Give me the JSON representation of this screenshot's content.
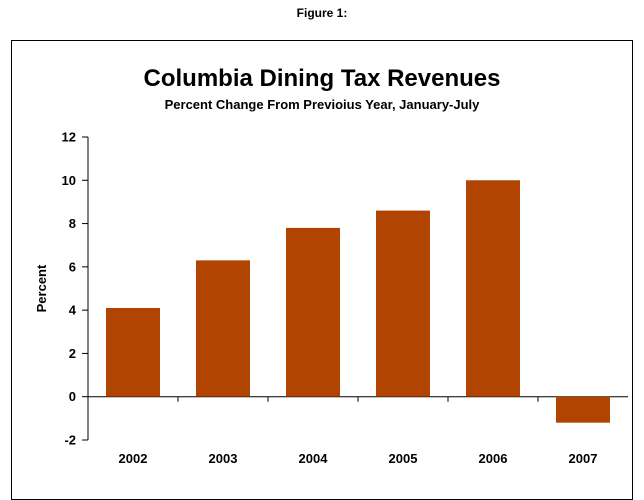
{
  "figure_label": "Figure 1:",
  "chart_data": {
    "type": "bar",
    "title": "Columbia Dining Tax Revenues",
    "subtitle": "Percent Change From Previoius Year, January-July",
    "ylabel": "Percent",
    "xlabel": "",
    "categories": [
      "2002",
      "2003",
      "2004",
      "2005",
      "2006",
      "2007"
    ],
    "values": [
      4.1,
      6.3,
      7.8,
      8.6,
      10.0,
      -1.2
    ],
    "ylim": [
      -2,
      12
    ],
    "yticks": [
      "-2",
      "0",
      "2",
      "4",
      "6",
      "8",
      "10",
      "12"
    ],
    "ytick_values": [
      -2,
      0,
      2,
      4,
      6,
      8,
      10,
      12
    ],
    "grid": false,
    "legend": "none",
    "bar_color": "#b04400"
  }
}
